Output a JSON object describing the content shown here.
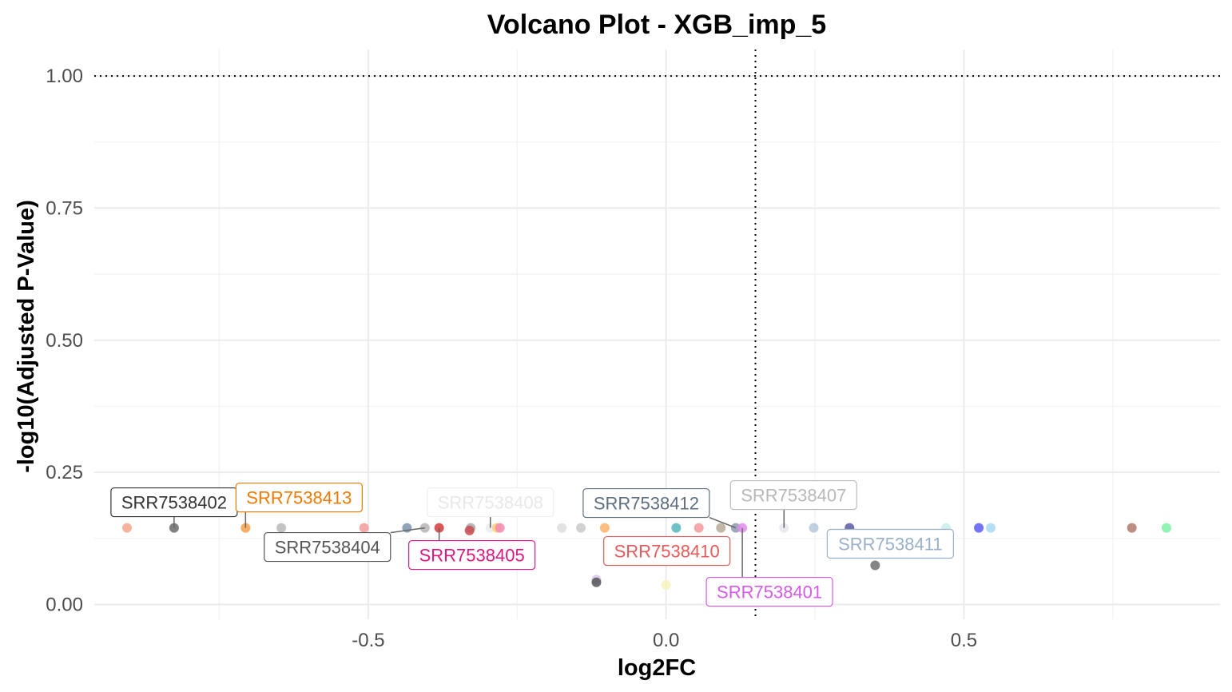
{
  "chart_data": {
    "type": "scatter",
    "title": "Volcano Plot - XGB_imp_5",
    "xlabel": "log2FC",
    "ylabel": "-log10(Adjusted P-Value)",
    "xlim": [
      -0.96,
      0.93
    ],
    "ylim": [
      -0.028,
      1.05
    ],
    "x_ticks": [
      {
        "value": -0.5,
        "label": "-0.5"
      },
      {
        "value": 0.0,
        "label": "0.0"
      },
      {
        "value": 0.5,
        "label": "0.5"
      }
    ],
    "y_ticks": [
      {
        "value": 0.0,
        "label": "0.00"
      },
      {
        "value": 0.25,
        "label": "0.25"
      },
      {
        "value": 0.5,
        "label": "0.50"
      },
      {
        "value": 0.75,
        "label": "0.75"
      },
      {
        "value": 1.0,
        "label": "1.00"
      }
    ],
    "grid": true,
    "legend": "none",
    "reference_lines": {
      "horizontal_y": 1.0,
      "vertical_x": 0.15
    },
    "points": [
      {
        "x": -0.905,
        "y": 0.145,
        "color": "#f4a78e"
      },
      {
        "x": -0.826,
        "y": 0.145,
        "color": "#6b6b6b"
      },
      {
        "x": -0.706,
        "y": 0.145,
        "color": "#f7a14a"
      },
      {
        "x": -0.646,
        "y": 0.145,
        "color": "#b8b8b8"
      },
      {
        "x": -0.507,
        "y": 0.145,
        "color": "#f29b9b"
      },
      {
        "x": -0.435,
        "y": 0.145,
        "color": "#7a97aa"
      },
      {
        "x": -0.405,
        "y": 0.145,
        "color": "#b5b5b5"
      },
      {
        "x": -0.381,
        "y": 0.145,
        "color": "#d53a3a"
      },
      {
        "x": -0.328,
        "y": 0.145,
        "color": "#a8a8a8"
      },
      {
        "x": -0.33,
        "y": 0.14,
        "color": "#c84a50"
      },
      {
        "x": -0.295,
        "y": 0.145,
        "color": "#ebebeb"
      },
      {
        "x": -0.284,
        "y": 0.145,
        "color": "#ffcf73"
      },
      {
        "x": -0.279,
        "y": 0.145,
        "color": "#f28ab3"
      },
      {
        "x": -0.175,
        "y": 0.145,
        "color": "#dddddd"
      },
      {
        "x": -0.143,
        "y": 0.145,
        "color": "#c9c9c9"
      },
      {
        "x": -0.103,
        "y": 0.145,
        "color": "#ffb36b"
      },
      {
        "x": -0.117,
        "y": 0.047,
        "color": "#d7c4e6"
      },
      {
        "x": -0.117,
        "y": 0.042,
        "color": "#555555"
      },
      {
        "x": 0.0,
        "y": 0.037,
        "color": "#f7f3c0"
      },
      {
        "x": 0.017,
        "y": 0.145,
        "color": "#55b7bd"
      },
      {
        "x": 0.055,
        "y": 0.145,
        "color": "#f59a9a"
      },
      {
        "x": 0.092,
        "y": 0.145,
        "color": "#b7a995"
      },
      {
        "x": 0.117,
        "y": 0.145,
        "color": "#8e9aad"
      },
      {
        "x": 0.128,
        "y": 0.145,
        "color": "#e38aef"
      },
      {
        "x": 0.198,
        "y": 0.145,
        "color": "#e6e6ee"
      },
      {
        "x": 0.248,
        "y": 0.145,
        "color": "#b5c8dd"
      },
      {
        "x": 0.308,
        "y": 0.145,
        "color": "#5b5ba5"
      },
      {
        "x": 0.351,
        "y": 0.074,
        "color": "#707070"
      },
      {
        "x": 0.47,
        "y": 0.145,
        "color": "#c8ecec"
      },
      {
        "x": 0.525,
        "y": 0.145,
        "color": "#5b5bf3"
      },
      {
        "x": 0.545,
        "y": 0.145,
        "color": "#a9d8f4"
      },
      {
        "x": 0.782,
        "y": 0.145,
        "color": "#b07a6a"
      },
      {
        "x": 0.84,
        "y": 0.145,
        "color": "#7ef2a6"
      }
    ],
    "labels": [
      {
        "text": "SRR7538402",
        "color": "#333333",
        "border": "#333333",
        "point_x": -0.826,
        "point_y": 0.145
      },
      {
        "text": "SRR7538413",
        "color": "#f07a00",
        "border": "#f07a00",
        "point_x": -0.706,
        "point_y": 0.145
      },
      {
        "text": "SRR7538404",
        "color": "#555555",
        "border": "#555555",
        "point_x": -0.405,
        "point_y": 0.145
      },
      {
        "text": "SRR7538408",
        "color": "#e8e8e8",
        "border": "#eeeeee",
        "point_x": -0.295,
        "point_y": 0.145
      },
      {
        "text": "SRR7538405",
        "color": "#e0157e",
        "border": "#e0157e",
        "point_x": -0.381,
        "point_y": 0.145
      },
      {
        "text": "SRR7538412",
        "color": "#5e6e7e",
        "border": "#5e6e7e",
        "point_x": 0.117,
        "point_y": 0.145
      },
      {
        "text": "SRR7538410",
        "color": "#e65a5a",
        "border": "#e65a5a",
        "point_x": 0.055,
        "point_y": 0.145
      },
      {
        "text": "SRR7538407",
        "color": "#b8b8b8",
        "border": "#bbbbbb",
        "point_x": 0.198,
        "point_y": 0.145
      },
      {
        "text": "SRR7538401",
        "color": "#d65ae8",
        "border": "#d65ae8",
        "point_x": 0.128,
        "point_y": 0.145
      },
      {
        "text": "SRR7538411",
        "color": "#9ab0c8",
        "border": "#9ab0c8",
        "point_x": 0.351,
        "point_y": 0.074
      }
    ]
  }
}
